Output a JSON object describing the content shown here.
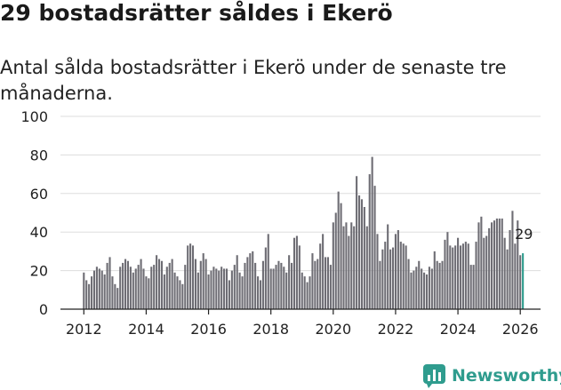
{
  "title": "29 bostadsrätter såldes i Ekerö",
  "subtitle": "Antal sålda bostadsrätter i Ekerö under de senaste tre månaderna.",
  "brand": {
    "name": "Newsworthy",
    "color": "#2f9c8e",
    "icon": "bar-chart-logo-icon"
  },
  "colors": {
    "bar": "#6e6d74",
    "highlight": "#2f9c8e",
    "grid": "#dddddd",
    "axis": "#222222"
  },
  "chart_data": {
    "type": "bar",
    "title": "29 bostadsrätter såldes i Ekerö",
    "xlabel": "",
    "ylabel": "",
    "ylim": [
      0,
      100
    ],
    "yticks": [
      "0",
      "20",
      "40",
      "60",
      "80",
      "100"
    ],
    "xticks": [
      "2012",
      "2014",
      "2016",
      "2018",
      "2020",
      "2022",
      "2024",
      "2026"
    ],
    "x_start": "2012-01",
    "x_axis_start_year": 2011.25,
    "x_axis_end_year": 2026.65,
    "series": [
      {
        "name": "Antal sålda bostadsrätter",
        "values": [
          19,
          15,
          13,
          17,
          20,
          22,
          21,
          20,
          18,
          24,
          27,
          17,
          13,
          11,
          22,
          24,
          26,
          25,
          22,
          19,
          21,
          23,
          26,
          21,
          17,
          16,
          22,
          23,
          28,
          26,
          25,
          18,
          22,
          24,
          26,
          19,
          17,
          15,
          13,
          23,
          33,
          34,
          33,
          26,
          19,
          25,
          29,
          26,
          18,
          20,
          22,
          21,
          20,
          22,
          21,
          21,
          15,
          20,
          23,
          28,
          19,
          17,
          24,
          27,
          29,
          30,
          24,
          17,
          15,
          25,
          32,
          39,
          21,
          21,
          23,
          25,
          24,
          22,
          19,
          28,
          24,
          37,
          38,
          33,
          19,
          17,
          14,
          17,
          29,
          25,
          26,
          34,
          39,
          27,
          27,
          23,
          45,
          50,
          61,
          55,
          43,
          45,
          38,
          45,
          43,
          69,
          59,
          57,
          53,
          43,
          70,
          79,
          64,
          39,
          25,
          31,
          35,
          44,
          31,
          32,
          39,
          41,
          35,
          34,
          33,
          26,
          19,
          20,
          22,
          25,
          21,
          19,
          18,
          22,
          21,
          30,
          25,
          24,
          25,
          36,
          40,
          33,
          32,
          33,
          37,
          33,
          34,
          35,
          34,
          23,
          23,
          35,
          45,
          48,
          37,
          38,
          42,
          45,
          46,
          47,
          47,
          47,
          37,
          31,
          41,
          51,
          34,
          46,
          28,
          29
        ],
        "highlight_last": 3
      }
    ],
    "annotations": [
      {
        "text": "29",
        "target": "last"
      }
    ]
  }
}
